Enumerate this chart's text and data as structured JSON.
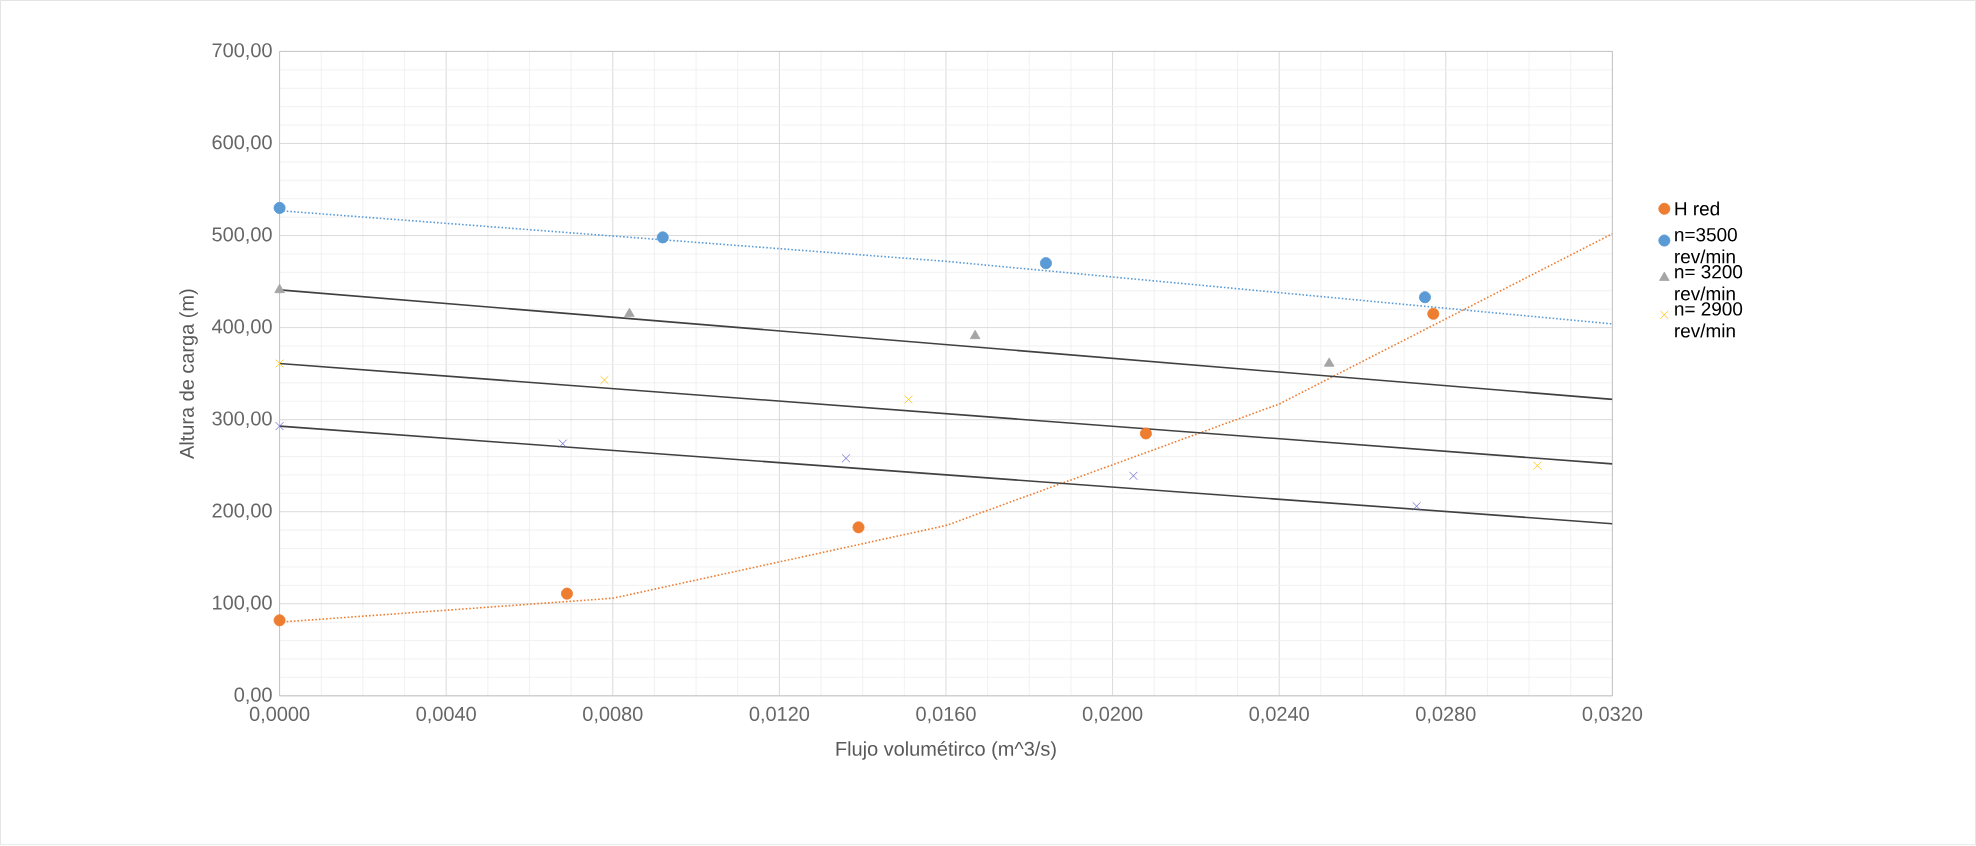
{
  "chart_data": {
    "type": "scatter",
    "xlabel": "Flujo volumétirco (m^3/s)",
    "ylabel": "Altura de carga (m)",
    "xlim": [
      0,
      0.032
    ],
    "ylim": [
      0,
      700
    ],
    "xticks": [
      {
        "value": 0,
        "label": "0,0000"
      },
      {
        "value": 0.004,
        "label": "0,0040"
      },
      {
        "value": 0.008,
        "label": "0,0080"
      },
      {
        "value": 0.012,
        "label": "0,0120"
      },
      {
        "value": 0.016,
        "label": "0,0160"
      },
      {
        "value": 0.02,
        "label": "0,0200"
      },
      {
        "value": 0.024,
        "label": "0,0240"
      },
      {
        "value": 0.028,
        "label": "0,0280"
      },
      {
        "value": 0.032,
        "label": "0,0320"
      }
    ],
    "yticks": [
      {
        "value": 0,
        "label": "0,00"
      },
      {
        "value": 100,
        "label": "100,00"
      },
      {
        "value": 200,
        "label": "200,00"
      },
      {
        "value": 300,
        "label": "300,00"
      },
      {
        "value": 400,
        "label": "400,00"
      },
      {
        "value": 500,
        "label": "500,00"
      },
      {
        "value": 600,
        "label": "600,00"
      },
      {
        "value": 700,
        "label": "700,00"
      }
    ],
    "grid": true,
    "legend": "right",
    "series": [
      {
        "type": "line",
        "color": "#ed7d31",
        "marker": "none",
        "line_style": "dotted",
        "x": [
          0,
          0.008,
          0.016,
          0.024,
          0.032
        ],
        "values": [
          80,
          106,
          185,
          317,
          502
        ]
      },
      {
        "type": "line",
        "color": "#5b9bd5",
        "marker": "none",
        "line_style": "dotted",
        "x": [
          0,
          0.016,
          0.032
        ],
        "values": [
          527,
          472,
          404
        ]
      },
      {
        "type": "line",
        "color": "#404040",
        "marker": "none",
        "line_style": "solid",
        "x": [
          0,
          0.032
        ],
        "values": [
          441,
          322
        ]
      },
      {
        "type": "line",
        "color": "#404040",
        "marker": "none",
        "line_style": "solid",
        "x": [
          0,
          0.032
        ],
        "values": [
          361,
          252
        ]
      },
      {
        "type": "line",
        "color": "#404040",
        "marker": "none",
        "line_style": "solid",
        "x": [
          0,
          0.032
        ],
        "values": [
          293,
          187
        ]
      },
      {
        "name": "H red",
        "type": "scatter",
        "color": "#ed7d31",
        "marker": "circle",
        "x": [
          0,
          0.0069,
          0.0139,
          0.0208,
          0.0277
        ],
        "values": [
          82,
          111,
          183,
          285,
          415
        ]
      },
      {
        "name": "n=3500 rev/min",
        "type": "scatter",
        "color": "#5b9bd5",
        "marker": "circle",
        "x": [
          0,
          0.0092,
          0.0184,
          0.0275
        ],
        "values": [
          530,
          498,
          470,
          433
        ]
      },
      {
        "name": "n= 3200 rev/min",
        "type": "scatter",
        "color": "#a5a5a5",
        "marker": "triangle",
        "x": [
          0,
          0.0084,
          0.0167,
          0.0252
        ],
        "values": [
          441,
          415,
          391,
          361
        ]
      },
      {
        "name": "n= 2900 rev/min",
        "type": "scatter",
        "color": "#ffc000",
        "marker": "cross",
        "x": [
          0,
          0.0078,
          0.0151,
          0.0302
        ],
        "values": [
          361,
          343,
          322,
          250
        ]
      },
      {
        "type": "scatter",
        "color": "#6666cc",
        "marker": "cross",
        "x": [
          0,
          0.0068,
          0.0136,
          0.0205,
          0.0273
        ],
        "values": [
          293,
          274,
          258,
          239,
          206
        ]
      }
    ]
  }
}
